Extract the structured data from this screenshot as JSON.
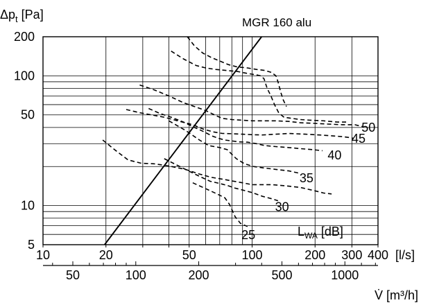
{
  "chart_data": {
    "type": "line",
    "title": "MGR 160 alu",
    "x_scale": "log",
    "y_scale": "log",
    "xlim": [
      10,
      400
    ],
    "ylim": [
      5,
      200
    ],
    "grid": true,
    "xlabel": "[l/s]",
    "x2label": "V̇ [m³/h]",
    "ylabel_parts": {
      "main": "Δp",
      "sub": "t",
      "unit": " [Pa]"
    },
    "x_ticks": [
      {
        "value": 10,
        "label": "10"
      },
      {
        "value": 20,
        "label": "20"
      },
      {
        "value": 50,
        "label": "50"
      },
      {
        "value": 100,
        "label": "100"
      },
      {
        "value": 200,
        "label": "200"
      },
      {
        "value": 300,
        "label": "300"
      },
      {
        "value": 400,
        "label": "400"
      }
    ],
    "x2_ticks": [
      {
        "value": 50,
        "label": "50"
      },
      {
        "value": 100,
        "label": "100"
      },
      {
        "value": 200,
        "label": "200"
      },
      {
        "value": 500,
        "label": "500"
      },
      {
        "value": 1000,
        "label": "1000"
      }
    ],
    "y_ticks": [
      {
        "value": 5,
        "label": "5"
      },
      {
        "value": 10,
        "label": "10"
      },
      {
        "value": 50,
        "label": "50"
      },
      {
        "value": 100,
        "label": "100"
      },
      {
        "value": 200,
        "label": "200"
      }
    ],
    "sound_label": {
      "main": "L",
      "sub": "WA",
      "unit": " [dB]"
    },
    "series": [
      {
        "style": "solid",
        "points": [
          [
            19.7,
            5
          ],
          [
            111,
            200
          ]
        ]
      },
      {
        "name": "25",
        "style": "dashed",
        "label_at": [
          96,
          5.95
        ],
        "points": [
          [
            52,
            15
          ],
          [
            60,
            13.5
          ],
          [
            68,
            12.3
          ],
          [
            74,
            11.5
          ],
          [
            78,
            10.2
          ],
          [
            83,
            8.2
          ],
          [
            88,
            7.3
          ],
          [
            95,
            6.9
          ]
        ]
      },
      {
        "name": "30",
        "style": "dashed",
        "label_at": [
          139,
          9.8
        ],
        "points": [
          [
            38,
            23
          ],
          [
            48,
            19
          ],
          [
            56,
            16.8
          ],
          [
            63,
            15.4
          ],
          [
            70,
            14.8
          ],
          [
            76,
            14.3
          ],
          [
            82,
            13.7
          ],
          [
            90,
            13.2
          ],
          [
            100,
            12.6
          ],
          [
            112,
            11.8
          ],
          [
            124,
            11.3
          ],
          [
            133,
            10.9
          ]
        ]
      },
      {
        "name": "35",
        "style": "dashed",
        "label_at": [
          182,
          16.3
        ],
        "points": [
          [
            40,
            45
          ],
          [
            48,
            38
          ],
          [
            56,
            32
          ],
          [
            62,
            29
          ],
          [
            70,
            28
          ],
          [
            76,
            27
          ],
          [
            84,
            23
          ],
          [
            92,
            21
          ],
          [
            102,
            20
          ],
          [
            114,
            19.5
          ],
          [
            130,
            19
          ],
          [
            150,
            18.5
          ],
          [
            167,
            17.8
          ]
        ]
      },
      {
        "name": "40",
        "style": "dashed",
        "label_at": [
          248,
          24.5
        ],
        "points": [
          [
            32,
            56
          ],
          [
            36,
            51.5
          ],
          [
            41,
            48
          ],
          [
            47,
            44
          ],
          [
            53,
            40
          ],
          [
            59,
            37
          ],
          [
            64,
            34.5
          ],
          [
            69,
            33
          ],
          [
            74,
            32
          ],
          [
            80,
            31.5
          ],
          [
            86,
            31
          ],
          [
            95,
            30.8
          ],
          [
            105,
            30
          ],
          [
            115,
            29
          ],
          [
            130,
            28.5
          ],
          [
            150,
            28
          ],
          [
            170,
            27.5
          ],
          [
            195,
            27
          ],
          [
            217,
            26.5
          ]
        ]
      },
      {
        "name": "45",
        "style": "dashed",
        "label_at": [
          323,
          32.8
        ],
        "points": [
          [
            25,
            55
          ],
          [
            29,
            52
          ],
          [
            33,
            50
          ],
          [
            38,
            48
          ],
          [
            44,
            45
          ],
          [
            52,
            42
          ],
          [
            58,
            39
          ],
          [
            65,
            37
          ],
          [
            72,
            36
          ],
          [
            80,
            35.8
          ],
          [
            90,
            35.5
          ],
          [
            100,
            35.2
          ],
          [
            112,
            35
          ],
          [
            130,
            35.5
          ],
          [
            150,
            36
          ],
          [
            180,
            35.5
          ],
          [
            210,
            35
          ],
          [
            240,
            34.5
          ],
          [
            270,
            34
          ],
          [
            290,
            33.5
          ],
          [
            305,
            33
          ]
        ]
      },
      {
        "name": "50",
        "style": "dashed",
        "label_at": [
          360,
          40
        ],
        "points": [
          [
            29,
            85
          ],
          [
            34,
            78
          ],
          [
            40,
            70
          ],
          [
            47,
            62
          ],
          [
            53,
            58
          ],
          [
            60,
            54
          ],
          [
            66,
            50
          ],
          [
            72,
            47
          ],
          [
            80,
            46
          ],
          [
            90,
            45.5
          ],
          [
            100,
            45
          ],
          [
            115,
            45
          ],
          [
            130,
            45
          ],
          [
            150,
            44.5
          ],
          [
            170,
            43.5
          ],
          [
            200,
            43
          ],
          [
            230,
            42.5
          ],
          [
            270,
            42
          ],
          [
            310,
            42
          ],
          [
            340,
            40.5
          ]
        ]
      },
      {
        "style": "dashed",
        "points": [
          [
            19.3,
            32
          ],
          [
            22,
            27
          ],
          [
            25.5,
            22.5
          ],
          [
            29.5,
            21.2
          ],
          [
            34,
            21
          ],
          [
            40,
            20.2
          ],
          [
            48,
            19
          ],
          [
            56,
            17.5
          ],
          [
            64,
            16.5
          ],
          [
            72,
            16
          ],
          [
            80,
            15.5
          ],
          [
            90,
            15
          ],
          [
            100,
            14.5
          ],
          [
            112,
            14.5
          ],
          [
            125,
            14.5
          ],
          [
            145,
            14.2
          ],
          [
            170,
            13.8
          ],
          [
            200,
            13
          ],
          [
            220,
            12.5
          ],
          [
            240,
            12.3
          ]
        ]
      },
      {
        "style": "dashed",
        "points": [
          [
            41,
            155
          ],
          [
            47,
            135
          ],
          [
            54,
            120
          ],
          [
            60,
            115
          ],
          [
            67,
            112
          ],
          [
            75,
            110
          ],
          [
            85,
            108
          ],
          [
            96,
            104
          ],
          [
            104,
            102
          ],
          [
            110,
            100
          ],
          [
            114,
            95
          ],
          [
            118,
            80
          ],
          [
            123,
            70
          ],
          [
            128,
            60
          ],
          [
            134,
            52
          ],
          [
            142,
            48
          ],
          [
            155,
            47
          ],
          [
            170,
            46
          ],
          [
            190,
            45.5
          ],
          [
            220,
            45
          ],
          [
            255,
            44
          ],
          [
            290,
            44
          ]
        ]
      },
      {
        "style": "dashed",
        "points": [
          [
            49,
            200
          ],
          [
            53,
            170
          ],
          [
            58,
            150
          ],
          [
            64,
            138
          ],
          [
            70,
            130
          ],
          [
            77,
            122
          ],
          [
            85,
            117
          ],
          [
            95,
            115
          ],
          [
            105,
            112
          ],
          [
            115,
            110
          ],
          [
            124,
            106
          ],
          [
            130,
            100
          ],
          [
            133,
            90
          ],
          [
            137,
            75
          ],
          [
            141,
            65
          ],
          [
            146,
            58
          ]
        ]
      }
    ]
  }
}
